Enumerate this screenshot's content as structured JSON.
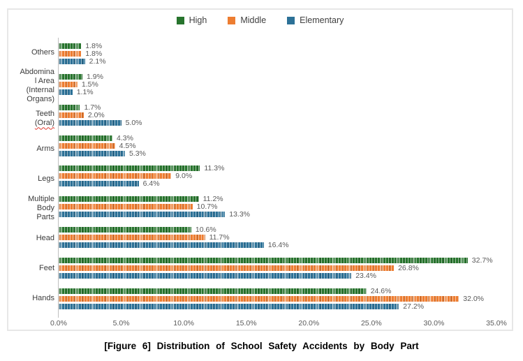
{
  "figure": {
    "caption": "[Figure 6] Distribution of School Safety Accidents by Body Part"
  },
  "colors": {
    "high": "#27742D",
    "middle": "#ED7D31",
    "elementary": "#2C7197",
    "axis_line": "#BFBFBF",
    "frame_border": "#E7E7E7",
    "value_label": "#595959",
    "spellcheck_underline": "#E0392F"
  },
  "chart_data": {
    "type": "bar",
    "orientation": "horizontal",
    "title": "",
    "xlabel": "",
    "ylabel": "",
    "xlim": [
      0,
      35
    ],
    "grid": false,
    "legend_position": "top-center",
    "x_ticks": [
      "0.0%",
      "5.0%",
      "10.0%",
      "15.0%",
      "20.0%",
      "25.0%",
      "30.0%",
      "35.0%"
    ],
    "x_tick_values": [
      0,
      5,
      10,
      15,
      20,
      25,
      30,
      35
    ],
    "categories_top_to_bottom": [
      {
        "name": "Others",
        "lines": [
          {
            "text": "Others"
          }
        ]
      },
      {
        "name": "Abdominal Area (Internal Organs)",
        "lines": [
          {
            "text": "Abdomina"
          },
          {
            "text": "l Area"
          },
          {
            "text": "(Internal"
          },
          {
            "text": "Organs)"
          }
        ]
      },
      {
        "name": "Teeth (Oral)",
        "lines": [
          {
            "text": "Teeth"
          },
          {
            "text": "(Oral)",
            "misspelled": true
          }
        ]
      },
      {
        "name": "Arms",
        "lines": [
          {
            "text": "Arms"
          }
        ]
      },
      {
        "name": "Legs",
        "lines": [
          {
            "text": "Legs"
          }
        ]
      },
      {
        "name": "Multiple Body Parts",
        "lines": [
          {
            "text": "Multiple"
          },
          {
            "text": "Body"
          },
          {
            "text": "Parts"
          }
        ]
      },
      {
        "name": "Head",
        "lines": [
          {
            "text": "Head"
          }
        ]
      },
      {
        "name": "Feet",
        "lines": [
          {
            "text": "Feet"
          }
        ]
      },
      {
        "name": "Hands",
        "lines": [
          {
            "text": "Hands"
          }
        ]
      }
    ],
    "series": [
      {
        "name": "High",
        "color_key": "high",
        "values": [
          1.8,
          1.9,
          1.7,
          4.3,
          11.3,
          11.2,
          10.6,
          32.7,
          24.6
        ]
      },
      {
        "name": "Middle",
        "color_key": "middle",
        "values": [
          1.8,
          1.5,
          2.0,
          4.5,
          9.0,
          10.7,
          11.7,
          26.8,
          32.0
        ]
      },
      {
        "name": "Elementary",
        "color_key": "elementary",
        "values": [
          2.1,
          1.1,
          5.0,
          5.3,
          6.4,
          13.3,
          16.4,
          23.4,
          27.2
        ]
      }
    ],
    "value_labels": {
      "High": [
        "1.8%",
        "1.9%",
        "1.7%",
        "4.3%",
        "11.3%",
        "11.2%",
        "10.6%",
        "32.7%",
        "24.6%"
      ],
      "Middle": [
        "1.8%",
        "1.5%",
        "2.0%",
        "4.5%",
        "9.0%",
        "10.7%",
        "11.7%",
        "26.8%",
        "32.0%"
      ],
      "Elementary": [
        "2.1%",
        "1.1%",
        "5.0%",
        "5.3%",
        "6.4%",
        "13.3%",
        "16.4%",
        "23.4%",
        "27.2%"
      ]
    }
  }
}
